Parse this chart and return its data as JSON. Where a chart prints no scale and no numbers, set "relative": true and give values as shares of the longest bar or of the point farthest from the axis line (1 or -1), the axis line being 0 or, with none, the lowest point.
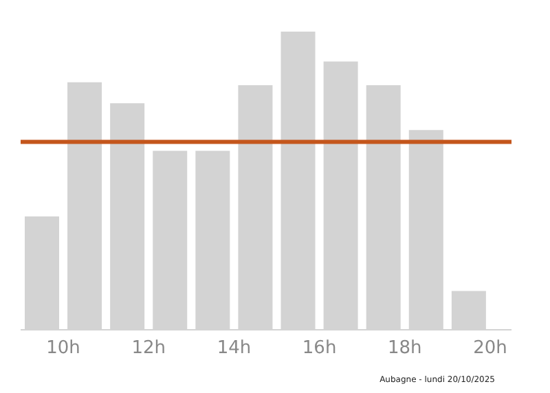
{
  "chart_data": {
    "type": "bar",
    "relative": true,
    "x": [
      9.5,
      10.5,
      11.5,
      12.5,
      13.5,
      14.5,
      15.5,
      16.5,
      17.5,
      18.5,
      19.5
    ],
    "values": [
      0.38,
      0.83,
      0.76,
      0.6,
      0.6,
      0.82,
      1,
      0.9,
      0.82,
      0.67,
      0.13
    ],
    "color": "#d3d3d3",
    "xlim": [
      9,
      20.5
    ],
    "xticks": [
      {
        "value": 10,
        "label": "10h"
      },
      {
        "value": 12,
        "label": "12h"
      },
      {
        "value": 14,
        "label": "14h"
      },
      {
        "value": 16,
        "label": "16h"
      },
      {
        "value": 18,
        "label": "18h"
      },
      {
        "value": 20,
        "label": "20h"
      }
    ],
    "ref_lines": [
      {
        "axis": "y",
        "value": 0.63,
        "color": "#c4561c"
      }
    ],
    "annotations": [
      "Aubagne - lundi 20/10/2025"
    ]
  }
}
